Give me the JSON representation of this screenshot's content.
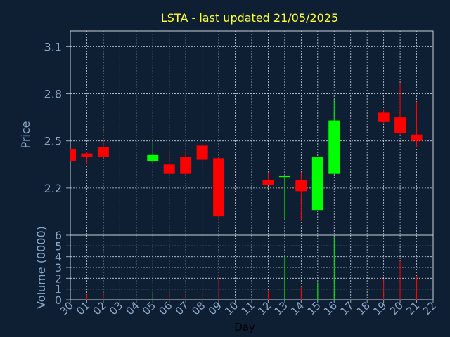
{
  "chart_data": {
    "type": "candlestick",
    "title": "LSTA - last updated 21/05/2025",
    "xlabel": "Day",
    "price_ylabel": "Price",
    "volume_ylabel": "Volume (0000)",
    "categories": [
      "30",
      "01",
      "02",
      "03",
      "04",
      "05",
      "06",
      "07",
      "08",
      "09",
      "10",
      "11",
      "12",
      "13",
      "14",
      "15",
      "16",
      "17",
      "18",
      "19",
      "20",
      "21",
      "22"
    ],
    "price_yticks": [
      2.2,
      2.5,
      2.8,
      3.1
    ],
    "price_ylim": [
      1.9,
      3.2
    ],
    "volume_yticks": [
      0,
      1,
      2,
      3,
      4,
      5,
      6
    ],
    "volume_ylim": [
      0,
      6
    ],
    "grid": true,
    "colors": {
      "up": "#00ff00",
      "down": "#ff0000",
      "title": "#ffff33",
      "axis": "#8aa8c8",
      "background": "#0f1f33"
    },
    "candles": [
      {
        "day": "30",
        "open": 2.45,
        "high": 2.45,
        "low": 2.37,
        "close": 2.37,
        "volume": 0.0
      },
      {
        "day": "01",
        "open": 2.42,
        "high": 2.43,
        "low": 2.35,
        "close": 2.4,
        "volume": 0.5
      },
      {
        "day": "02",
        "open": 2.46,
        "high": 2.5,
        "low": 2.4,
        "close": 2.4,
        "volume": 0.6
      },
      {
        "day": "05",
        "open": 2.37,
        "high": 2.5,
        "low": 2.36,
        "close": 2.41,
        "volume": 0.7
      },
      {
        "day": "06",
        "open": 2.35,
        "high": 2.44,
        "low": 2.29,
        "close": 2.29,
        "volume": 0.9
      },
      {
        "day": "07",
        "open": 2.4,
        "high": 2.44,
        "low": 2.29,
        "close": 2.29,
        "volume": 0.5
      },
      {
        "day": "08",
        "open": 2.47,
        "high": 2.47,
        "low": 2.33,
        "close": 2.38,
        "volume": 0.6
      },
      {
        "day": "09",
        "open": 2.39,
        "high": 2.39,
        "low": 1.99,
        "close": 2.02,
        "volume": 2.1
      },
      {
        "day": "12",
        "open": 2.25,
        "high": 2.3,
        "low": 2.22,
        "close": 2.22,
        "volume": 0.9
      },
      {
        "day": "13",
        "open": 2.27,
        "high": 2.28,
        "low": 2.0,
        "close": 2.28,
        "volume": 4.0
      },
      {
        "day": "14",
        "open": 2.25,
        "high": 2.3,
        "low": 1.99,
        "close": 2.18,
        "volume": 1.2
      },
      {
        "day": "15",
        "open": 2.06,
        "high": 2.4,
        "low": 2.06,
        "close": 2.4,
        "volume": 1.6
      },
      {
        "day": "16",
        "open": 2.29,
        "high": 2.76,
        "low": 2.29,
        "close": 2.63,
        "volume": 5.8
      },
      {
        "day": "19",
        "open": 2.68,
        "high": 2.7,
        "low": 2.61,
        "close": 2.62,
        "volume": 1.9
      },
      {
        "day": "20",
        "open": 2.65,
        "high": 2.87,
        "low": 2.54,
        "close": 2.55,
        "volume": 3.6
      },
      {
        "day": "21",
        "open": 2.54,
        "high": 2.75,
        "low": 2.46,
        "close": 2.5,
        "volume": 2.2
      }
    ]
  }
}
